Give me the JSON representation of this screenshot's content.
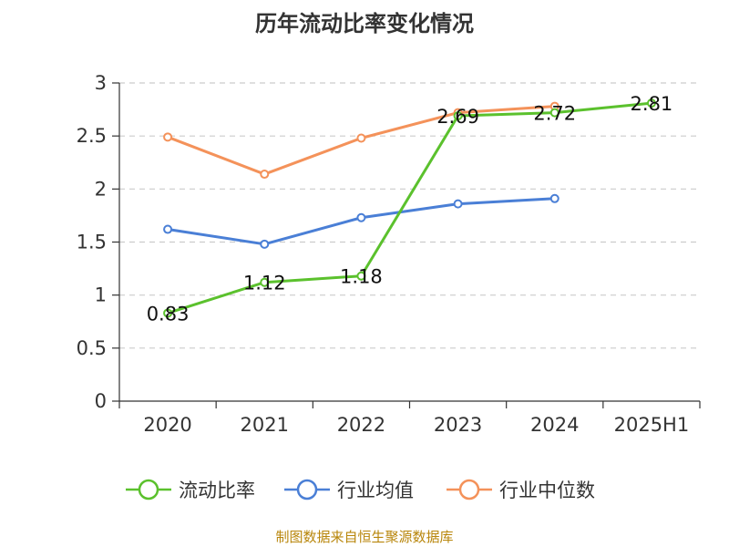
{
  "chart_data": {
    "type": "line",
    "title": "历年流动比率变化情况",
    "categories": [
      "2020",
      "2021",
      "2022",
      "2023",
      "2024",
      "2025H1"
    ],
    "ylim": [
      0,
      3
    ],
    "yticks": [
      "0",
      "0.5",
      "1",
      "1.5",
      "2",
      "2.5",
      "3"
    ],
    "grid": true,
    "legend_position": "bottom",
    "series": [
      {
        "name": "流动比率",
        "color": "#5bc12d",
        "values": [
          0.83,
          1.12,
          1.18,
          2.69,
          2.72,
          2.81
        ],
        "labels": [
          "0.83",
          "1.12",
          "1.18",
          "2.69",
          "2.72",
          "2.81"
        ]
      },
      {
        "name": "行业均值",
        "color": "#4a7fd6",
        "values": [
          1.62,
          1.48,
          1.73,
          1.86,
          1.91,
          null
        ]
      },
      {
        "name": "行业中位数",
        "color": "#f4925a",
        "values": [
          2.49,
          2.14,
          2.48,
          2.72,
          2.78,
          null
        ]
      }
    ]
  },
  "source": "制图数据来自恒生聚源数据库"
}
